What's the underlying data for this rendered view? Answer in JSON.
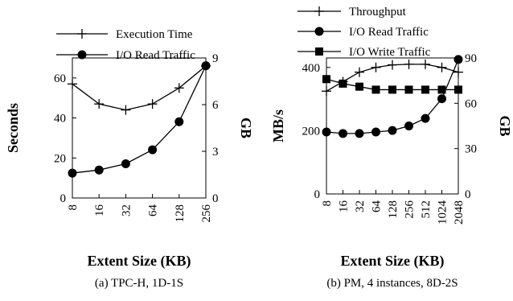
{
  "chart_data": [
    {
      "type": "line",
      "caption": "(a)  TPC-H, 1D-1S",
      "xlabel": "Extent Size (KB)",
      "ylabel": "Seconds",
      "y2label": "GB",
      "categories": [
        "8",
        "16",
        "32",
        "64",
        "128",
        "256"
      ],
      "ylim": [
        0,
        70
      ],
      "yticks": [
        0,
        20,
        40,
        60
      ],
      "y2lim": [
        0,
        9
      ],
      "y2ticks": [
        0,
        3,
        6,
        9
      ],
      "legend_position": "top",
      "grid": false,
      "series": [
        {
          "name": "Execution Time",
          "axis": "left",
          "marker": "plus",
          "values": [
            57,
            47,
            44,
            47,
            55,
            66
          ]
        },
        {
          "name": "I/O Read Traffic",
          "axis": "right",
          "marker": "circle",
          "values": [
            1.6,
            1.8,
            2.2,
            3.1,
            4.9,
            8.5
          ]
        }
      ]
    },
    {
      "type": "line",
      "caption": "(b)  PM, 4 instances, 8D-2S",
      "xlabel": "Extent Size (KB)",
      "ylabel": "MB/s",
      "y2label": "GB",
      "categories": [
        "8",
        "16",
        "32",
        "64",
        "128",
        "256",
        "512",
        "1024",
        "2048"
      ],
      "ylim": [
        0,
        430
      ],
      "yticks": [
        0,
        200,
        400
      ],
      "y2lim": [
        0,
        90
      ],
      "y2ticks": [
        0,
        30,
        60,
        90
      ],
      "legend_position": "top",
      "grid": false,
      "series": [
        {
          "name": "Throughput",
          "axis": "left",
          "marker": "plus",
          "values": [
            325,
            355,
            385,
            400,
            408,
            410,
            410,
            400,
            385
          ]
        },
        {
          "name": "I/O Read Traffic",
          "axis": "right",
          "marker": "circle",
          "values": [
            41,
            40,
            40,
            41,
            42,
            45,
            50,
            63,
            89
          ]
        },
        {
          "name": "I/O Write Traffic",
          "axis": "right",
          "marker": "square",
          "values": [
            76,
            73,
            71,
            69,
            69,
            69,
            69,
            69,
            69
          ]
        }
      ]
    }
  ]
}
